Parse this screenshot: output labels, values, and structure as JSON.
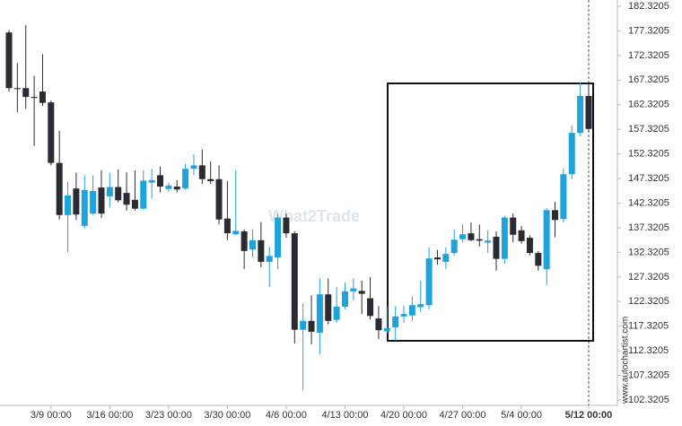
{
  "chart_data": {
    "type": "candlestick",
    "watermark": "What2Trade",
    "source": "www.autochartist.com",
    "open": [
      177,
      165.7,
      165.7,
      163.9,
      165,
      162.8,
      150.5,
      139.9,
      145.3,
      137.7,
      140.2,
      145.5,
      143.7,
      145.6,
      144.4,
      143,
      141.2,
      146.5,
      148,
      145.2,
      145.7,
      145.3,
      149.3,
      150,
      147.2,
      147.2,
      139.2,
      136,
      136.6,
      132.9,
      134.8,
      130.4,
      131.3,
      139.4,
      136.2,
      116.6,
      118.4,
      116,
      123.8,
      118.6,
      121.3,
      124.4,
      124.5,
      123,
      118.9,
      116.3,
      117.1,
      119.3,
      119.5,
      121.2,
      121.6,
      131.3,
      130.4,
      132.2,
      135,
      136.2,
      135,
      134.3,
      135.5,
      131,
      139.4,
      136.8,
      135.3,
      132.2,
      128.9,
      140.9,
      139.1,
      148.2,
      156.6,
      164.1
    ],
    "high": [
      177.5,
      170.8,
      178.5,
      168.2,
      172.6,
      163.2,
      157,
      146.7,
      148.5,
      148,
      148,
      149,
      148.5,
      149.2,
      148.6,
      149,
      149,
      149.3,
      149.7,
      146.5,
      147,
      150.3,
      152.3,
      153.2,
      150.8,
      150,
      146.8,
      149,
      137,
      137,
      138.5,
      133.5,
      140.2,
      140.2,
      136.6,
      122,
      123.6,
      127,
      127,
      125.3,
      126.2,
      127,
      126.6,
      127.3,
      121.4,
      121.4,
      121.4,
      121.5,
      123.4,
      126.6,
      133.4,
      132.8,
      133.4,
      137,
      138,
      138.4,
      138,
      136.8,
      136.6,
      139.8,
      140.2,
      137.7,
      135.8,
      132.6,
      141.3,
      142.6,
      149.4,
      158.1,
      166.8,
      166.8
    ],
    "low": [
      165,
      160.8,
      161.5,
      153.9,
      162.1,
      150,
      139,
      132.4,
      138.9,
      137.2,
      139.9,
      139.3,
      141.5,
      142.5,
      140.8,
      140.8,
      141,
      143.2,
      144.5,
      144.6,
      144.5,
      145,
      148,
      146.2,
      146.2,
      138,
      134.8,
      135.8,
      128.9,
      131.3,
      129.3,
      125.3,
      128.9,
      135.3,
      113.8,
      104.3,
      113.6,
      111.6,
      117.7,
      118,
      120.8,
      122.6,
      119.8,
      118.7,
      114.7,
      115.8,
      114.4,
      118,
      118.3,
      120.2,
      120.7,
      129.8,
      129,
      131.7,
      134.4,
      134.6,
      133.5,
      132.2,
      128.6,
      130,
      134.4,
      134.1,
      131.7,
      128.6,
      125.6,
      135.4,
      138.4,
      147.2,
      155.9,
      156.6
    ],
    "close": [
      165.7,
      165.5,
      163.9,
      163.7,
      162.7,
      150.5,
      139.9,
      143.9,
      140,
      145,
      144.8,
      140.2,
      145.6,
      142.9,
      142,
      141.2,
      146.9,
      147,
      145.7,
      145.9,
      145.1,
      149.3,
      150,
      147.2,
      146.8,
      139,
      136.2,
      136.7,
      132.6,
      134.8,
      130.4,
      131.6,
      139.4,
      136.2,
      116.6,
      118.4,
      116.2,
      123.8,
      118.4,
      121.3,
      124.4,
      125,
      123.9,
      119.4,
      116.5,
      116.9,
      119.3,
      119.8,
      121.6,
      121.8,
      131.1,
      130.9,
      132,
      134.9,
      136,
      134.8,
      134.7,
      134.7,
      131,
      139.4,
      135.9,
      134.6,
      132.2,
      129.6,
      140.9,
      138.9,
      148.2,
      156.6,
      164.1,
      157.4
    ],
    "up_color": "#1fa3dc",
    "down_color": "#2b2b33",
    "ylim": [
      101.6,
      183.6
    ],
    "yticks": [
      182.3205,
      177.3205,
      172.3205,
      167.3205,
      162.3205,
      157.3205,
      152.3205,
      147.3205,
      142.3205,
      137.3205,
      132.3205,
      127.3205,
      122.3205,
      117.3205,
      112.3205,
      107.3205,
      102.3205
    ],
    "xticks": [
      {
        "value": 5,
        "label": "3/9 00:00"
      },
      {
        "value": 12,
        "label": "3/16 00:00"
      },
      {
        "value": 19,
        "label": "3/23 00:00"
      },
      {
        "value": 26,
        "label": "3/30 00:00"
      },
      {
        "value": 33,
        "label": "4/6 00:00"
      },
      {
        "value": 40,
        "label": "4/13 00:00"
      },
      {
        "value": 47,
        "label": "4/20 00:00"
      },
      {
        "value": 54,
        "label": "4/27 00:00"
      },
      {
        "value": 61,
        "label": "5/4 00:00"
      },
      {
        "value": 69,
        "label": "5/12 00:00"
      }
    ]
  }
}
